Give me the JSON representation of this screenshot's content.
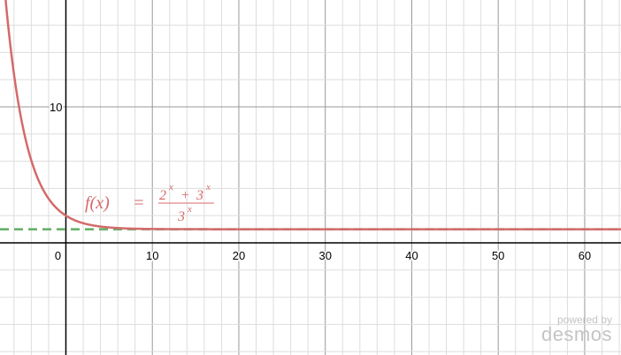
{
  "chart_data": {
    "type": "line",
    "xlim": [
      -7.62,
      64.2
    ],
    "ylim": [
      -8.25,
      17.86
    ],
    "grid": true,
    "x_ticks": [
      0,
      10,
      20,
      30,
      40,
      50,
      60
    ],
    "y_ticks": [
      10
    ],
    "x_minor_step": 2,
    "y_minor_step": 2,
    "series": [
      {
        "expression": "f(x) = (2^x + 3^x)/3^x",
        "color": "#d46a6a",
        "style": "solid"
      },
      {
        "expression": "y = 1",
        "color": "#5fae65",
        "style": "dashed"
      }
    ],
    "label": {
      "lhs": "f(x)",
      "eq": "=",
      "num_a": "2",
      "num_op": "+",
      "num_b": "3",
      "exp": "x",
      "den": "3"
    }
  },
  "watermark": {
    "powered": "powered by",
    "brand": "desmos"
  }
}
